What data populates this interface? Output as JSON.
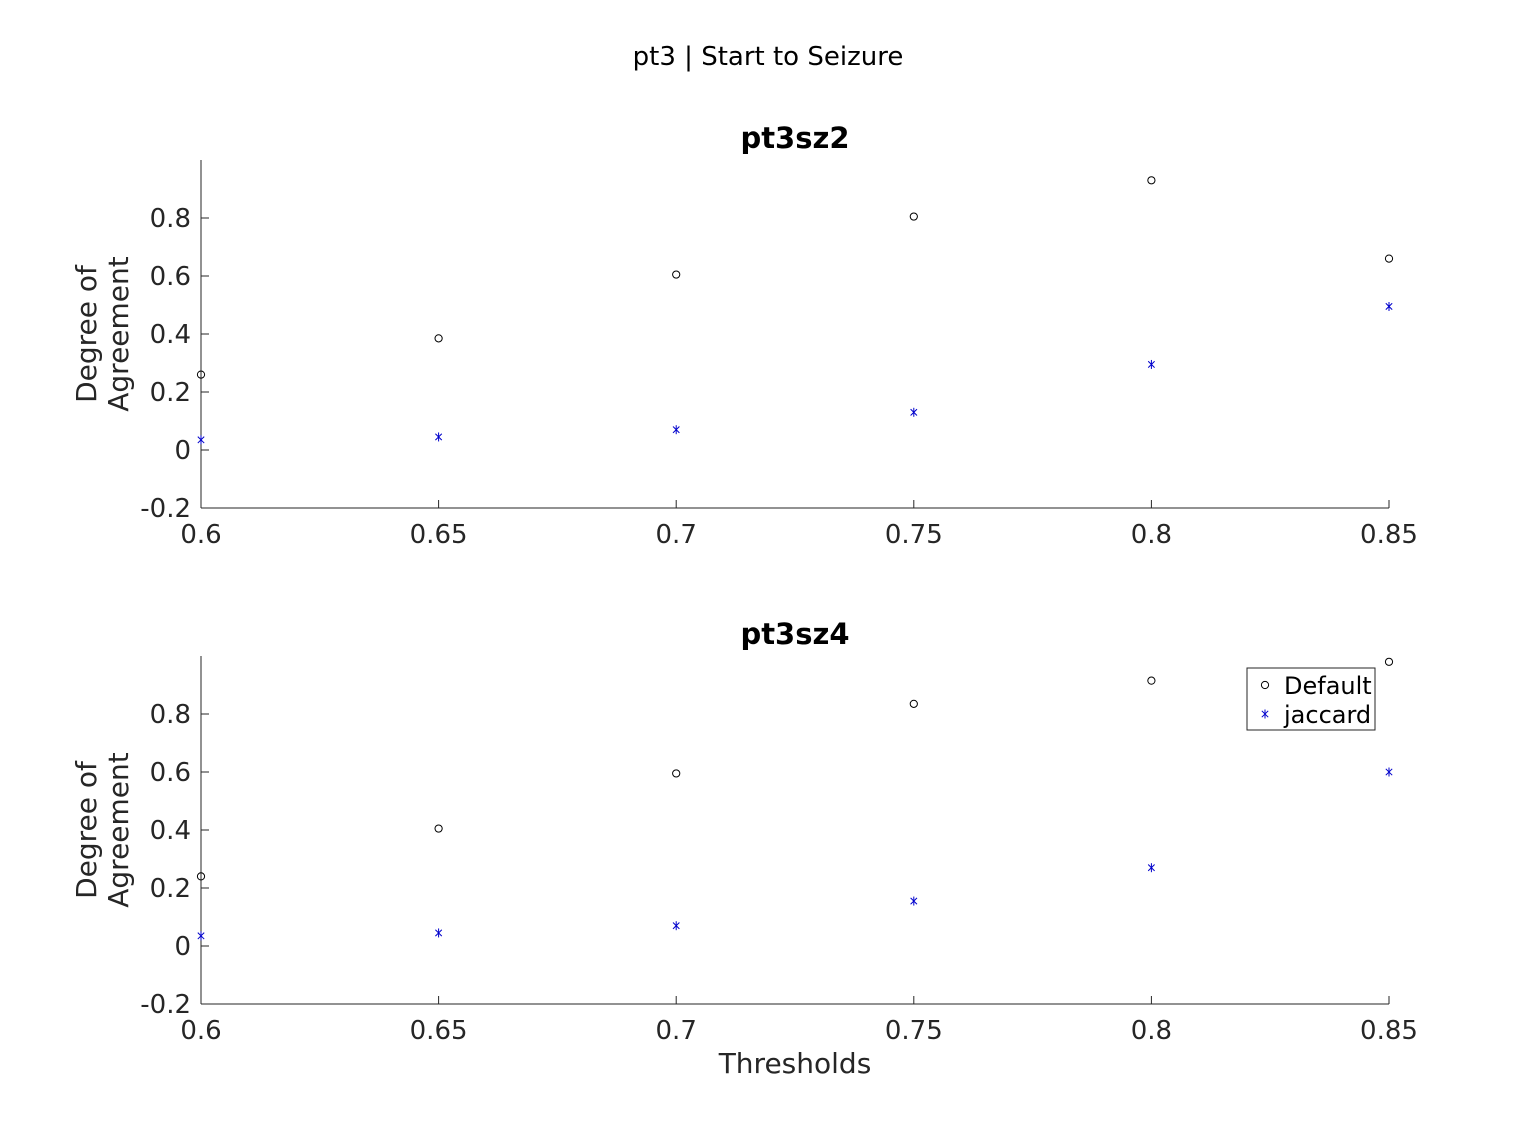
{
  "figure": {
    "title": "pt3 | Start to Seizure",
    "marker_colors": {
      "Default": "#000000",
      "jaccard": "#0000cc"
    },
    "axis_color": "#262626"
  },
  "chart_data": [
    {
      "type": "scatter",
      "title": "pt3sz2",
      "xlabel": "",
      "ylabel": "Degree of Agreement",
      "ylabel_lines": [
        "Degree of",
        "Agreement"
      ],
      "x": [
        0.6,
        0.65,
        0.7,
        0.75,
        0.8,
        0.85
      ],
      "xlim": [
        0.6,
        0.85
      ],
      "ylim": [
        -0.2,
        1.0
      ],
      "xticks": [
        "0.6",
        "0.65",
        "0.7",
        "0.75",
        "0.8",
        "0.85"
      ],
      "yticks": [
        "-0.2",
        "0",
        "0.2",
        "0.4",
        "0.6",
        "0.8"
      ],
      "grid": false,
      "legend": false,
      "series": [
        {
          "name": "Default",
          "marker": "circle",
          "values": [
            0.26,
            0.385,
            0.605,
            0.805,
            0.93,
            0.66
          ]
        },
        {
          "name": "jaccard",
          "marker": "star",
          "values": [
            0.035,
            0.045,
            0.07,
            0.13,
            0.295,
            0.495
          ]
        }
      ]
    },
    {
      "type": "scatter",
      "title": "pt3sz4",
      "xlabel": "Thresholds",
      "ylabel": "Degree of Agreement",
      "ylabel_lines": [
        "Degree of",
        "Agreement"
      ],
      "x": [
        0.6,
        0.65,
        0.7,
        0.75,
        0.8,
        0.85
      ],
      "xlim": [
        0.6,
        0.85
      ],
      "ylim": [
        -0.2,
        1.0
      ],
      "xticks": [
        "0.6",
        "0.65",
        "0.7",
        "0.75",
        "0.8",
        "0.85"
      ],
      "yticks": [
        "-0.2",
        "0",
        "0.2",
        "0.4",
        "0.6",
        "0.8"
      ],
      "grid": false,
      "legend": true,
      "legend_position": "top-right",
      "series": [
        {
          "name": "Default",
          "marker": "circle",
          "values": [
            0.24,
            0.405,
            0.595,
            0.835,
            0.915,
            0.98
          ]
        },
        {
          "name": "jaccard",
          "marker": "star",
          "values": [
            0.035,
            0.045,
            0.07,
            0.155,
            0.27,
            0.6
          ]
        }
      ]
    }
  ]
}
